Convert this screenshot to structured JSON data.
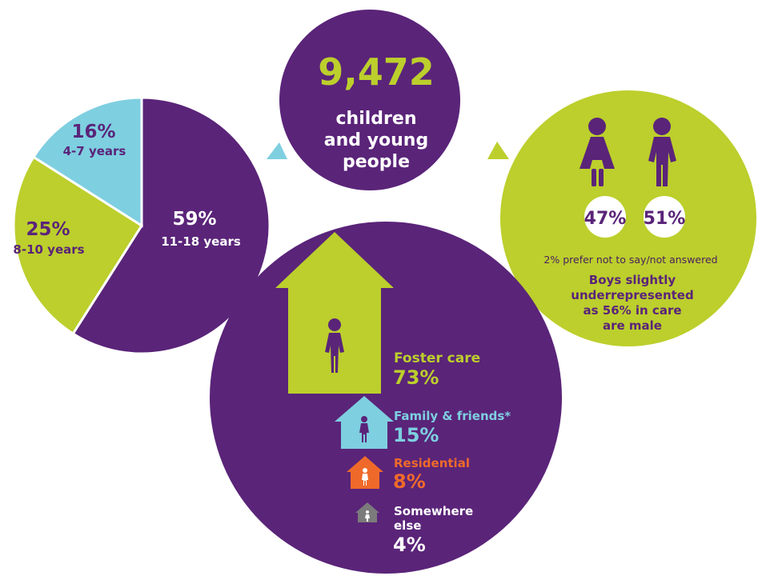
{
  "colors": {
    "purple": "#5a2479",
    "lime": "#bccf2c",
    "cyan": "#7ecfe0",
    "orange": "#ef6a2a",
    "grey": "#7b7b7b",
    "white": "#ffffff"
  },
  "headline": {
    "number": "9,472",
    "line1": "children",
    "line2": "and young",
    "line3": "people"
  },
  "age_pie": {
    "slices": [
      {
        "value": 59,
        "value_label": "59%",
        "sub_label": "11-18 years",
        "color": "purple"
      },
      {
        "value": 25,
        "value_label": "25%",
        "sub_label": "8-10 years",
        "color": "lime"
      },
      {
        "value": 16,
        "value_label": "16%",
        "sub_label": "4-7 years",
        "color": "cyan"
      }
    ]
  },
  "gender": {
    "girls_pct": "47%",
    "boys_pct": "51%",
    "not_answered": "2% prefer not to say/not answered",
    "note_line1": "Boys slightly",
    "note_line2": "underrepresented",
    "note_line3": "as 56% in care",
    "note_line4": "are male"
  },
  "placement": {
    "items": [
      {
        "label": "Foster care",
        "pct": "73%",
        "color": "lime"
      },
      {
        "label": "Family & friends*",
        "pct": "15%",
        "color": "cyan"
      },
      {
        "label": "Residential",
        "pct": "8%",
        "color": "orange"
      },
      {
        "label_line1": "Somewhere",
        "label_line2": "else",
        "pct": "4%",
        "color": "grey"
      }
    ]
  }
}
